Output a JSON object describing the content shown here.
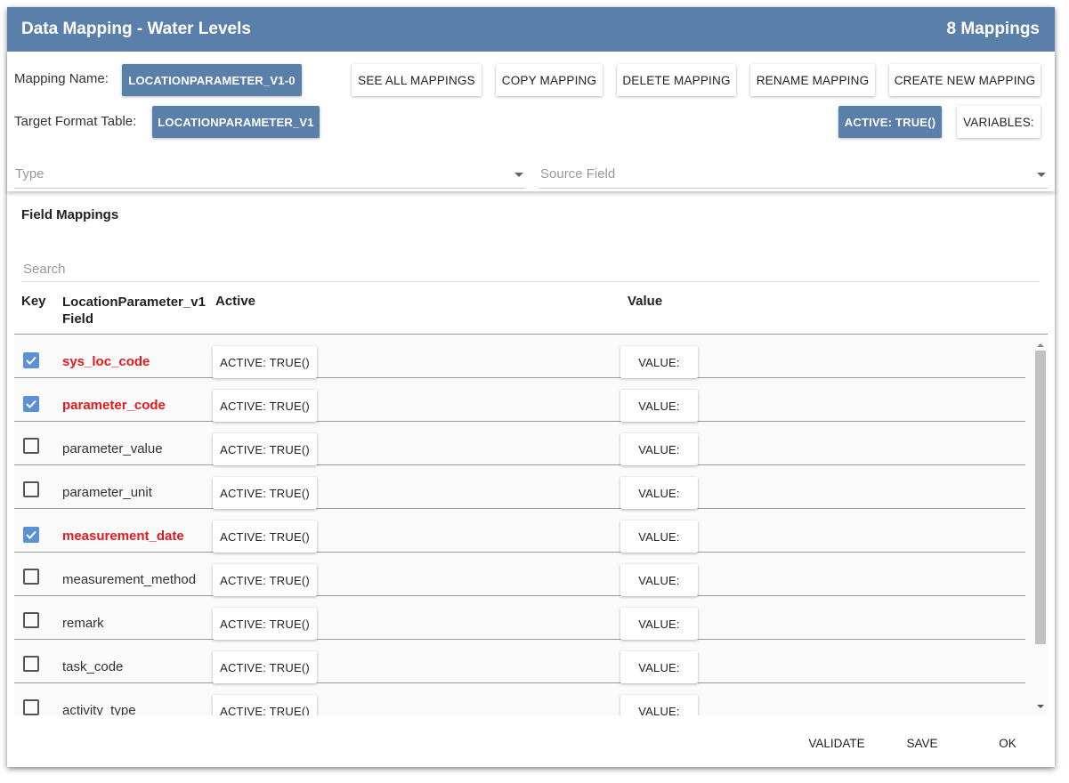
{
  "header": {
    "title": "Data Mapping - Water Levels",
    "count": "8 Mappings"
  },
  "mapping": {
    "name_label": "Mapping Name:",
    "name_value": "LOCATIONPARAMETER_V1-0",
    "target_label": "Target Format Table:",
    "target_value": "LOCATIONPARAMETER_V1"
  },
  "toolbar": [
    "SEE ALL MAPPINGS",
    "COPY MAPPING",
    "DELETE MAPPING",
    "RENAME MAPPING",
    "CREATE NEW MAPPING"
  ],
  "active_button": "ACTIVE: TRUE()",
  "variables_button": "VARIABLES:",
  "selects": {
    "type": "Type",
    "source": "Source Field"
  },
  "section": {
    "title": "Field Mappings",
    "search": "Search"
  },
  "columns": [
    "Key",
    "LocationParameter_v1 Field",
    "Active",
    "Value"
  ],
  "rows": [
    {
      "key": true,
      "field": "sys_loc_code",
      "active": "ACTIVE: TRUE()",
      "value": "VALUE:"
    },
    {
      "key": true,
      "field": "parameter_code",
      "active": "ACTIVE: TRUE()",
      "value": "VALUE:"
    },
    {
      "key": false,
      "field": "parameter_value",
      "active": "ACTIVE: TRUE()",
      "value": "VALUE:"
    },
    {
      "key": false,
      "field": "parameter_unit",
      "active": "ACTIVE: TRUE()",
      "value": "VALUE:"
    },
    {
      "key": true,
      "field": "measurement_date",
      "active": "ACTIVE: TRUE()",
      "value": "VALUE:"
    },
    {
      "key": false,
      "field": "measurement_method",
      "active": "ACTIVE: TRUE()",
      "value": "VALUE:"
    },
    {
      "key": false,
      "field": "remark",
      "active": "ACTIVE: TRUE()",
      "value": "VALUE:"
    },
    {
      "key": false,
      "field": "task_code",
      "active": "ACTIVE: TRUE()",
      "value": "VALUE:"
    },
    {
      "key": false,
      "field": "activity_type",
      "active": "ACTIVE: TRUE()",
      "value": "VALUE:"
    }
  ],
  "footer": [
    "VALIDATE",
    "SAVE",
    "OK"
  ]
}
